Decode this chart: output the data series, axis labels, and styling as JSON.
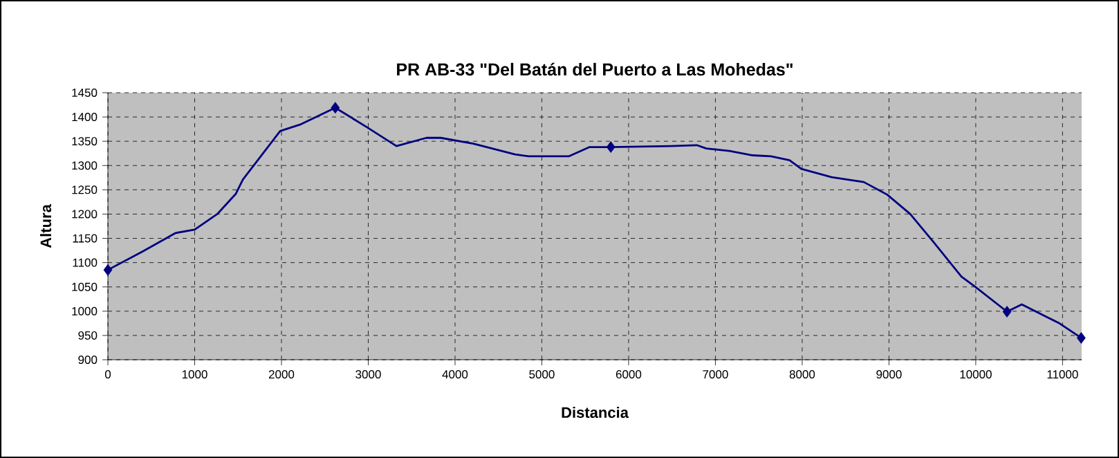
{
  "chart_data": {
    "type": "line",
    "title": "PR AB-33 \"Del Batán del Puerto a Las Mohedas\"",
    "xlabel": "Distancia",
    "ylabel": "Altura",
    "xlim": [
      0,
      11220
    ],
    "xticks": [
      0,
      1000,
      2000,
      3000,
      4000,
      5000,
      6000,
      7000,
      8000,
      9000,
      10000,
      11000
    ],
    "ylim": [
      900,
      1450
    ],
    "yticks": [
      900,
      950,
      1000,
      1050,
      1100,
      1150,
      1200,
      1250,
      1300,
      1350,
      1400,
      1450
    ],
    "grid": true,
    "line_style": "solid",
    "series": [
      {
        "color": "#000080",
        "x": [
          0,
          400,
          780,
          1000,
          1260,
          1475,
          1555,
          1985,
          2225,
          2620,
          2975,
          3325,
          3670,
          3835,
          4210,
          4690,
          4850,
          5310,
          5550,
          5795,
          6490,
          6785,
          6895,
          7160,
          7430,
          7640,
          7855,
          7990,
          8340,
          8710,
          8980,
          9245,
          9515,
          9835,
          9995,
          10360,
          10530,
          10795,
          10955,
          11215
        ],
        "values": [
          1085,
          1123,
          1161,
          1168,
          1200,
          1242,
          1271,
          1371,
          1385,
          1419,
          1380,
          1340,
          1357,
          1357,
          1345,
          1323,
          1319,
          1319,
          1338,
          1338,
          1340,
          1342,
          1335,
          1330,
          1321,
          1319,
          1311,
          1293,
          1276,
          1266,
          1240,
          1200,
          1142,
          1071,
          1050,
          999,
          1014,
          990,
          976,
          945
        ]
      },
      {
        "type": "scatter",
        "marker": "diamond",
        "color": "#000080",
        "x": [
          0,
          2620,
          5795,
          10360,
          11215
        ],
        "values": [
          1085,
          1419,
          1338,
          999,
          945
        ]
      }
    ]
  }
}
